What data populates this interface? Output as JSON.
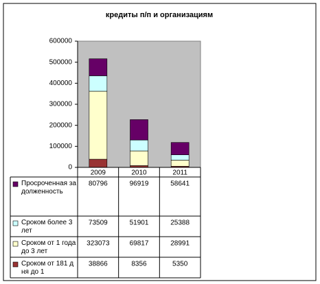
{
  "chart_data": {
    "type": "stacked-bar",
    "title": "кредиты п/п и организациям",
    "categories": [
      "2009",
      "2010",
      "2011"
    ],
    "series": [
      {
        "name": "Просроченная задолженность",
        "color": "#660066",
        "values": [
          80796,
          96919,
          58641
        ]
      },
      {
        "name": "Сроком более 3 лет",
        "color": "#ccffff",
        "values": [
          73509,
          51901,
          25388
        ]
      },
      {
        "name": "Сроком от 1 года до 3 лет",
        "color": "#ffffcc",
        "values": [
          323073,
          69817,
          28991
        ]
      },
      {
        "name": "Сроком от 181 дня до 1",
        "color": "#993333",
        "values": [
          38866,
          8356,
          5350
        ]
      }
    ],
    "ylim": [
      0,
      600000
    ],
    "yticks": [
      0,
      100000,
      200000,
      300000,
      400000,
      500000,
      600000
    ],
    "plot_background": "#c0c0c0"
  }
}
